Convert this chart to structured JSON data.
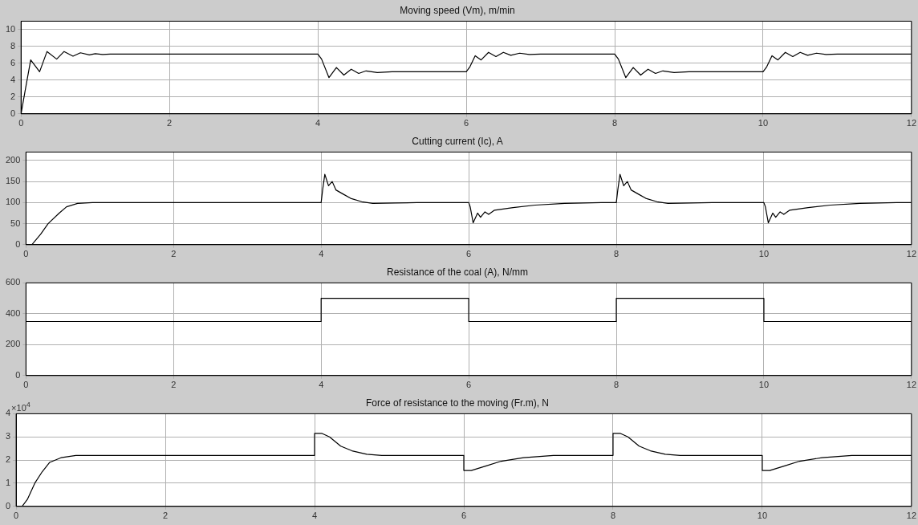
{
  "chart_data": [
    {
      "type": "line",
      "title": "Moving speed (Vm), m/min",
      "color": "#000000",
      "grid": true,
      "xlim": [
        0,
        12
      ],
      "xticks": [
        0,
        2,
        4,
        6,
        8,
        10,
        12
      ],
      "ylim": [
        0,
        11
      ],
      "yticks": [
        0,
        2,
        4,
        6,
        8,
        10
      ],
      "x": [
        0,
        0.05,
        0.13,
        0.25,
        0.35,
        0.48,
        0.58,
        0.7,
        0.8,
        0.92,
        1.0,
        1.1,
        1.2,
        4.0,
        4.05,
        4.15,
        4.25,
        4.35,
        4.45,
        4.55,
        4.65,
        4.8,
        5.0,
        6.0,
        6.05,
        6.12,
        6.2,
        6.3,
        6.4,
        6.5,
        6.6,
        6.72,
        6.85,
        7.0,
        8.0,
        8.05,
        8.15,
        8.25,
        8.35,
        8.45,
        8.55,
        8.65,
        8.8,
        9.0,
        10.0,
        10.05,
        10.12,
        10.2,
        10.3,
        10.4,
        10.5,
        10.6,
        10.72,
        10.85,
        11.0,
        12.0
      ],
      "values": [
        0,
        2.5,
        6.4,
        5.0,
        7.4,
        6.5,
        7.4,
        6.85,
        7.25,
        7.0,
        7.15,
        7.05,
        7.1,
        7.1,
        6.5,
        4.3,
        5.5,
        4.6,
        5.3,
        4.8,
        5.1,
        4.9,
        5.0,
        5.0,
        5.6,
        6.9,
        6.4,
        7.3,
        6.8,
        7.3,
        6.95,
        7.2,
        7.05,
        7.1,
        7.1,
        6.5,
        4.3,
        5.5,
        4.6,
        5.3,
        4.8,
        5.1,
        4.9,
        5.0,
        5.0,
        5.6,
        6.9,
        6.4,
        7.3,
        6.8,
        7.3,
        6.95,
        7.2,
        7.05,
        7.1,
        7.1
      ]
    },
    {
      "type": "line",
      "title": "Cutting current (Ic), A",
      "color": "#000000",
      "grid": true,
      "xlim": [
        0,
        12
      ],
      "xticks": [
        0,
        2,
        4,
        6,
        8,
        10,
        12
      ],
      "ylim": [
        0,
        220
      ],
      "yticks": [
        0,
        50,
        100,
        150,
        200
      ],
      "x": [
        0,
        0.08,
        0.2,
        0.3,
        0.45,
        0.55,
        0.7,
        0.9,
        4.0,
        4.02,
        4.05,
        4.1,
        4.15,
        4.2,
        4.3,
        4.4,
        4.55,
        4.7,
        5.0,
        5.3,
        6.0,
        6.02,
        6.06,
        6.12,
        6.16,
        6.22,
        6.27,
        6.35,
        6.6,
        6.9,
        7.3,
        7.8,
        8.0,
        8.02,
        8.05,
        8.1,
        8.15,
        8.2,
        8.3,
        8.4,
        8.55,
        8.7,
        9.0,
        9.3,
        10.0,
        10.02,
        10.06,
        10.12,
        10.16,
        10.22,
        10.27,
        10.35,
        10.6,
        10.9,
        11.3,
        11.8,
        12.0
      ],
      "values": [
        0,
        0,
        25,
        50,
        75,
        90,
        98,
        100,
        100,
        130,
        167,
        140,
        150,
        130,
        120,
        110,
        102,
        98,
        99,
        100,
        100,
        90,
        52,
        75,
        65,
        78,
        72,
        82,
        88,
        94,
        98,
        100,
        100,
        130,
        167,
        140,
        150,
        130,
        120,
        110,
        102,
        98,
        99,
        100,
        100,
        90,
        52,
        75,
        65,
        78,
        72,
        82,
        88,
        94,
        98,
        100,
        100
      ]
    },
    {
      "type": "step",
      "title": "Resistance of the coal (A), N/mm",
      "color": "#000000",
      "grid": true,
      "xlim": [
        0,
        12
      ],
      "xticks": [
        0,
        2,
        4,
        6,
        8,
        10,
        12
      ],
      "ylim": [
        0,
        600
      ],
      "yticks": [
        0,
        200,
        400,
        600
      ],
      "x": [
        0,
        4,
        6,
        8,
        10,
        12
      ],
      "values": [
        350,
        500,
        350,
        500,
        350,
        350
      ]
    },
    {
      "type": "line",
      "title": "Force of resistance to the moving (Fr.m), N",
      "color": "#000000",
      "grid": true,
      "xlim": [
        0,
        12
      ],
      "xticks": [
        0,
        2,
        4,
        6,
        8,
        10,
        12
      ],
      "ylim": [
        0,
        4
      ],
      "yticks": [
        0,
        1,
        2,
        3,
        4
      ],
      "annotations": [
        "×10$^{4}$"
      ],
      "x": [
        0,
        0.08,
        0.15,
        0.25,
        0.35,
        0.45,
        0.6,
        0.8,
        4.0,
        4.0,
        4.1,
        4.2,
        4.35,
        4.5,
        4.7,
        4.9,
        6.0,
        6.0,
        6.1,
        6.3,
        6.5,
        6.8,
        7.2,
        8.0,
        8.0,
        8.1,
        8.2,
        8.35,
        8.5,
        8.7,
        8.9,
        10.0,
        10.0,
        10.1,
        10.3,
        10.5,
        10.8,
        11.2,
        12.0
      ],
      "values": [
        0,
        0,
        0.3,
        1,
        1.5,
        1.9,
        2.1,
        2.2,
        2.2,
        3.15,
        3.15,
        3.0,
        2.6,
        2.4,
        2.25,
        2.2,
        2.2,
        1.55,
        1.55,
        1.75,
        1.95,
        2.1,
        2.2,
        2.2,
        3.15,
        3.15,
        3.0,
        2.6,
        2.4,
        2.25,
        2.2,
        2.2,
        1.55,
        1.55,
        1.75,
        1.95,
        2.1,
        2.2,
        2.2
      ]
    }
  ]
}
